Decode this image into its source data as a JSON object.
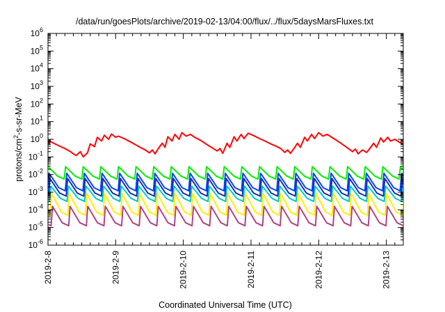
{
  "chart_data": {
    "type": "line",
    "title": "/data/run/goesPlots/archive/2019-02-13/04:00/flux/../flux/5daysMarsFluxes.txt",
    "xlabel": "Coordinated Universal Time (UTC)",
    "ylabel": {
      "prefix": "protons/cm",
      "sup": "2",
      "suffix": "-s-sr-MeV"
    },
    "xlim": [
      "2019-02-08",
      "2019-02-13T06:00"
    ],
    "ylim": [
      1e-06,
      1000000.0
    ],
    "yscale": "log",
    "grid": false,
    "x_ticks": [
      {
        "x": "2019-02-08",
        "label": "2019-2-8"
      },
      {
        "x": "2019-02-09",
        "label": "2019-2-9"
      },
      {
        "x": "2019-02-10",
        "label": "2019-2-10"
      },
      {
        "x": "2019-02-11",
        "label": "2019-2-11"
      },
      {
        "x": "2019-02-12",
        "label": "2019-2-12"
      },
      {
        "x": "2019-02-13",
        "label": "2019-2-13"
      }
    ],
    "y_ticks": [
      {
        "value": 1e-06,
        "base": "10",
        "exp": "-6"
      },
      {
        "value": 1e-05,
        "base": "10",
        "exp": "-5"
      },
      {
        "value": 0.0001,
        "base": "10",
        "exp": "-4"
      },
      {
        "value": 0.001,
        "base": "10",
        "exp": "-3"
      },
      {
        "value": 0.01,
        "base": "10",
        "exp": "-2"
      },
      {
        "value": 0.1,
        "base": "10",
        "exp": "-1"
      },
      {
        "value": 1,
        "base": "10",
        "exp": "0"
      },
      {
        "value": 10,
        "base": "10",
        "exp": "1"
      },
      {
        "value": 100,
        "base": "10",
        "exp": "2"
      },
      {
        "value": 1000,
        "base": "10",
        "exp": "3"
      },
      {
        "value": 10000,
        "base": "10",
        "exp": "4"
      },
      {
        "value": 100000,
        "base": "10",
        "exp": "5"
      },
      {
        "value": 1000000,
        "base": "10",
        "exp": "6"
      }
    ],
    "series": [
      {
        "color": "#ff0000",
        "points": [
          [
            "2019-02-08T00:00",
            0.8
          ],
          [
            "2019-02-08T00:20",
            0.55
          ],
          [
            "2019-02-08T00:40",
            0.8
          ],
          [
            "2019-02-08T02:00",
            0.6
          ],
          [
            "2019-02-08T04:00",
            0.42
          ],
          [
            "2019-02-08T06:00",
            0.3
          ],
          [
            "2019-02-08T08:00",
            0.2
          ],
          [
            "2019-02-08T09:00",
            0.15
          ],
          [
            "2019-02-08T10:00",
            0.12
          ],
          [
            "2019-02-08T11:30",
            0.2
          ],
          [
            "2019-02-08T12:30",
            0.1
          ],
          [
            "2019-02-08T14:00",
            0.17
          ],
          [
            "2019-02-08T15:00",
            0.55
          ],
          [
            "2019-02-08T16:30",
            0.38
          ],
          [
            "2019-02-08T17:30",
            1.3
          ],
          [
            "2019-02-08T19:00",
            0.8
          ],
          [
            "2019-02-08T20:00",
            1.7
          ],
          [
            "2019-02-08T21:30",
            1.0
          ],
          [
            "2019-02-08T22:30",
            2.0
          ],
          [
            "2019-02-09T00:00",
            1.3
          ],
          [
            "2019-02-09T01:00",
            1.5
          ],
          [
            "2019-02-09T03:00",
            1.1
          ],
          [
            "2019-02-09T05:00",
            0.75
          ],
          [
            "2019-02-09T07:00",
            0.5
          ],
          [
            "2019-02-09T09:00",
            0.33
          ],
          [
            "2019-02-09T10:30",
            0.25
          ],
          [
            "2019-02-09T12:00",
            0.17
          ],
          [
            "2019-02-09T13:00",
            0.25
          ],
          [
            "2019-02-09T14:00",
            0.15
          ],
          [
            "2019-02-09T15:00",
            0.28
          ],
          [
            "2019-02-09T16:30",
            0.6
          ],
          [
            "2019-02-09T17:30",
            0.35
          ],
          [
            "2019-02-09T18:30",
            1.4
          ],
          [
            "2019-02-09T20:00",
            0.8
          ],
          [
            "2019-02-09T21:00",
            1.9
          ],
          [
            "2019-02-09T22:30",
            1.0
          ],
          [
            "2019-02-09T23:30",
            2.4
          ],
          [
            "2019-02-10T01:00",
            1.5
          ],
          [
            "2019-02-10T02:30",
            1.9
          ],
          [
            "2019-02-10T04:00",
            1.3
          ],
          [
            "2019-02-10T06:00",
            0.9
          ],
          [
            "2019-02-10T08:00",
            0.55
          ],
          [
            "2019-02-10T10:00",
            0.35
          ],
          [
            "2019-02-10T12:00",
            0.22
          ],
          [
            "2019-02-10T13:00",
            0.3
          ],
          [
            "2019-02-10T14:00",
            0.16
          ],
          [
            "2019-02-10T15:30",
            0.6
          ],
          [
            "2019-02-10T16:30",
            0.35
          ],
          [
            "2019-02-10T18:00",
            1.4
          ],
          [
            "2019-02-10T19:00",
            0.8
          ],
          [
            "2019-02-10T20:30",
            1.9
          ],
          [
            "2019-02-10T21:30",
            1.1
          ],
          [
            "2019-02-10T23:00",
            2.2
          ],
          [
            "2019-02-11T01:00",
            1.6
          ],
          [
            "2019-02-11T03:00",
            1.1
          ],
          [
            "2019-02-11T05:00",
            0.8
          ],
          [
            "2019-02-11T07:00",
            0.55
          ],
          [
            "2019-02-11T09:00",
            0.4
          ],
          [
            "2019-02-11T10:30",
            0.3
          ],
          [
            "2019-02-11T12:00",
            0.18
          ],
          [
            "2019-02-11T13:00",
            0.25
          ],
          [
            "2019-02-11T14:00",
            0.16
          ],
          [
            "2019-02-11T15:30",
            0.35
          ],
          [
            "2019-02-11T16:30",
            0.6
          ],
          [
            "2019-02-11T17:30",
            0.35
          ],
          [
            "2019-02-11T19:00",
            1.3
          ],
          [
            "2019-02-11T20:00",
            0.8
          ],
          [
            "2019-02-11T21:30",
            1.9
          ],
          [
            "2019-02-11T22:30",
            1.1
          ],
          [
            "2019-02-12T00:00",
            2.4
          ],
          [
            "2019-02-12T01:30",
            1.5
          ],
          [
            "2019-02-12T03:00",
            1.9
          ],
          [
            "2019-02-12T05:00",
            1.2
          ],
          [
            "2019-02-12T07:00",
            0.75
          ],
          [
            "2019-02-12T09:00",
            0.45
          ],
          [
            "2019-02-12T10:30",
            0.3
          ],
          [
            "2019-02-12T12:00",
            0.2
          ],
          [
            "2019-02-12T13:00",
            0.28
          ],
          [
            "2019-02-12T14:00",
            0.15
          ],
          [
            "2019-02-12T15:30",
            0.25
          ],
          [
            "2019-02-12T17:00",
            0.18
          ],
          [
            "2019-02-12T18:00",
            0.28
          ],
          [
            "2019-02-12T19:30",
            0.6
          ],
          [
            "2019-02-12T20:30",
            0.35
          ],
          [
            "2019-02-12T22:00",
            1.2
          ],
          [
            "2019-02-12T23:00",
            0.7
          ],
          [
            "2019-02-13T00:30",
            1.3
          ],
          [
            "2019-02-13T01:30",
            0.8
          ],
          [
            "2019-02-13T03:00",
            1.0
          ],
          [
            "2019-02-13T04:30",
            0.7
          ],
          [
            "2019-02-13T06:00",
            0.5
          ]
        ]
      },
      {
        "color": "#00ee00",
        "period_hours": 6.25,
        "peak": 0.028,
        "trough": 0.0055,
        "phase": 0
      },
      {
        "color": "#0044ff",
        "period_hours": 6.25,
        "peak": 0.012,
        "trough": 0.0012,
        "phase": 0.4
      },
      {
        "color": "#1a2fb0",
        "period_hours": 6.25,
        "peak": 0.006,
        "trough": 0.0006,
        "phase": 0.7
      },
      {
        "color": "#00c8c8",
        "period_hours": 6.25,
        "peak": 0.0022,
        "trough": 0.0003,
        "phase": 1.0
      },
      {
        "color": "#ffee00",
        "period_hours": 6.25,
        "peak": 0.00085,
        "trough": 5e-05,
        "phase": 1.3
      },
      {
        "color": "#b04088",
        "period_hours": 6.25,
        "peak": 0.00016,
        "trough": 1.25e-05,
        "phase": 1.6
      }
    ]
  }
}
